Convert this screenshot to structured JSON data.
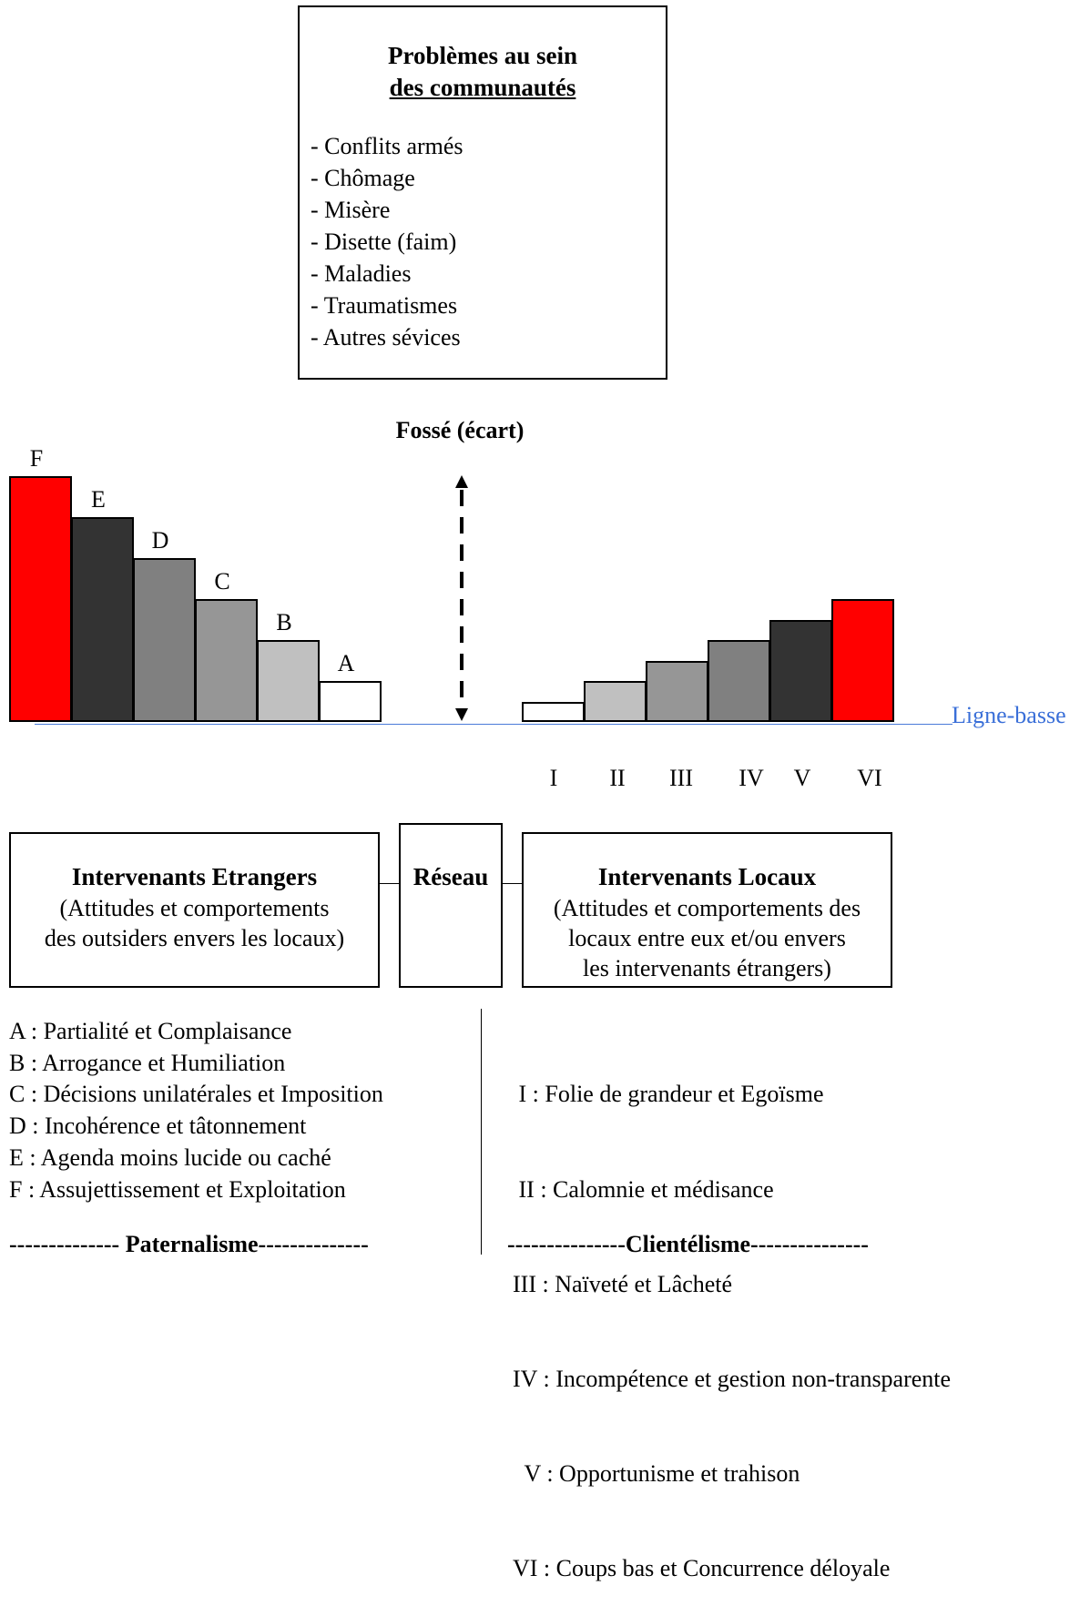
{
  "problems": {
    "title_line1": "Problèmes au sein",
    "title_line2": "des communautés",
    "items": [
      "- Conflits armés",
      "- Chômage",
      "- Misère",
      "- Disette (faim)",
      "- Maladies",
      "- Traumatismes",
      "- Autres sévices"
    ]
  },
  "gap_label": "Fossé (écart)",
  "baseline_label": "Ligne-basse",
  "foreign_bars": {
    "labels": [
      "F",
      "E",
      "D",
      "C",
      "B",
      "A"
    ],
    "levels": [
      6,
      5,
      4,
      3,
      2,
      1
    ],
    "colors": [
      "#ff0000",
      "#333333",
      "#808080",
      "#969696",
      "#c0c0c0",
      "#ffffff"
    ]
  },
  "local_bars": {
    "labels": [
      "I",
      "II",
      "III",
      "IV",
      "V",
      "VI"
    ],
    "levels": [
      0.5,
      1,
      1.5,
      2,
      2.5,
      3
    ],
    "colors": [
      "#ffffff",
      "#c0c0c0",
      "#969696",
      "#808080",
      "#333333",
      "#ff0000"
    ]
  },
  "boxes": {
    "foreign": {
      "title": "Intervenants Etrangers",
      "desc_line1": "(Attitudes et comportements",
      "desc_line2": "des outsiders envers les locaux)"
    },
    "network": {
      "title": "Réseau"
    },
    "local": {
      "title": "Intervenants Locaux",
      "desc_line1": "(Attitudes et comportements des",
      "desc_line2": "locaux entre eux  et/ou envers",
      "desc_line3": "les intervenants étrangers)"
    }
  },
  "legend_left": [
    "A : Partialité et Complaisance",
    "B : Arrogance  et Humiliation",
    "C : Décisions unilatérales et Imposition",
    "D : Incohérence et tâtonnement",
    "E : Agenda moins lucide ou caché",
    "F : Assujettissement et Exploitation"
  ],
  "legend_right": [
    " I : Folie de grandeur et Egoïsme",
    " II : Calomnie et médisance",
    "III : Naïveté et Lâcheté",
    "IV : Incompétence et gestion non-transparente",
    "  V : Opportunisme et trahison",
    "VI : Coups bas et Concurrence déloyale"
  ],
  "footer_left": "-------------- Paternalisme--------------",
  "footer_right": "---------------Clientélisme---------------"
}
